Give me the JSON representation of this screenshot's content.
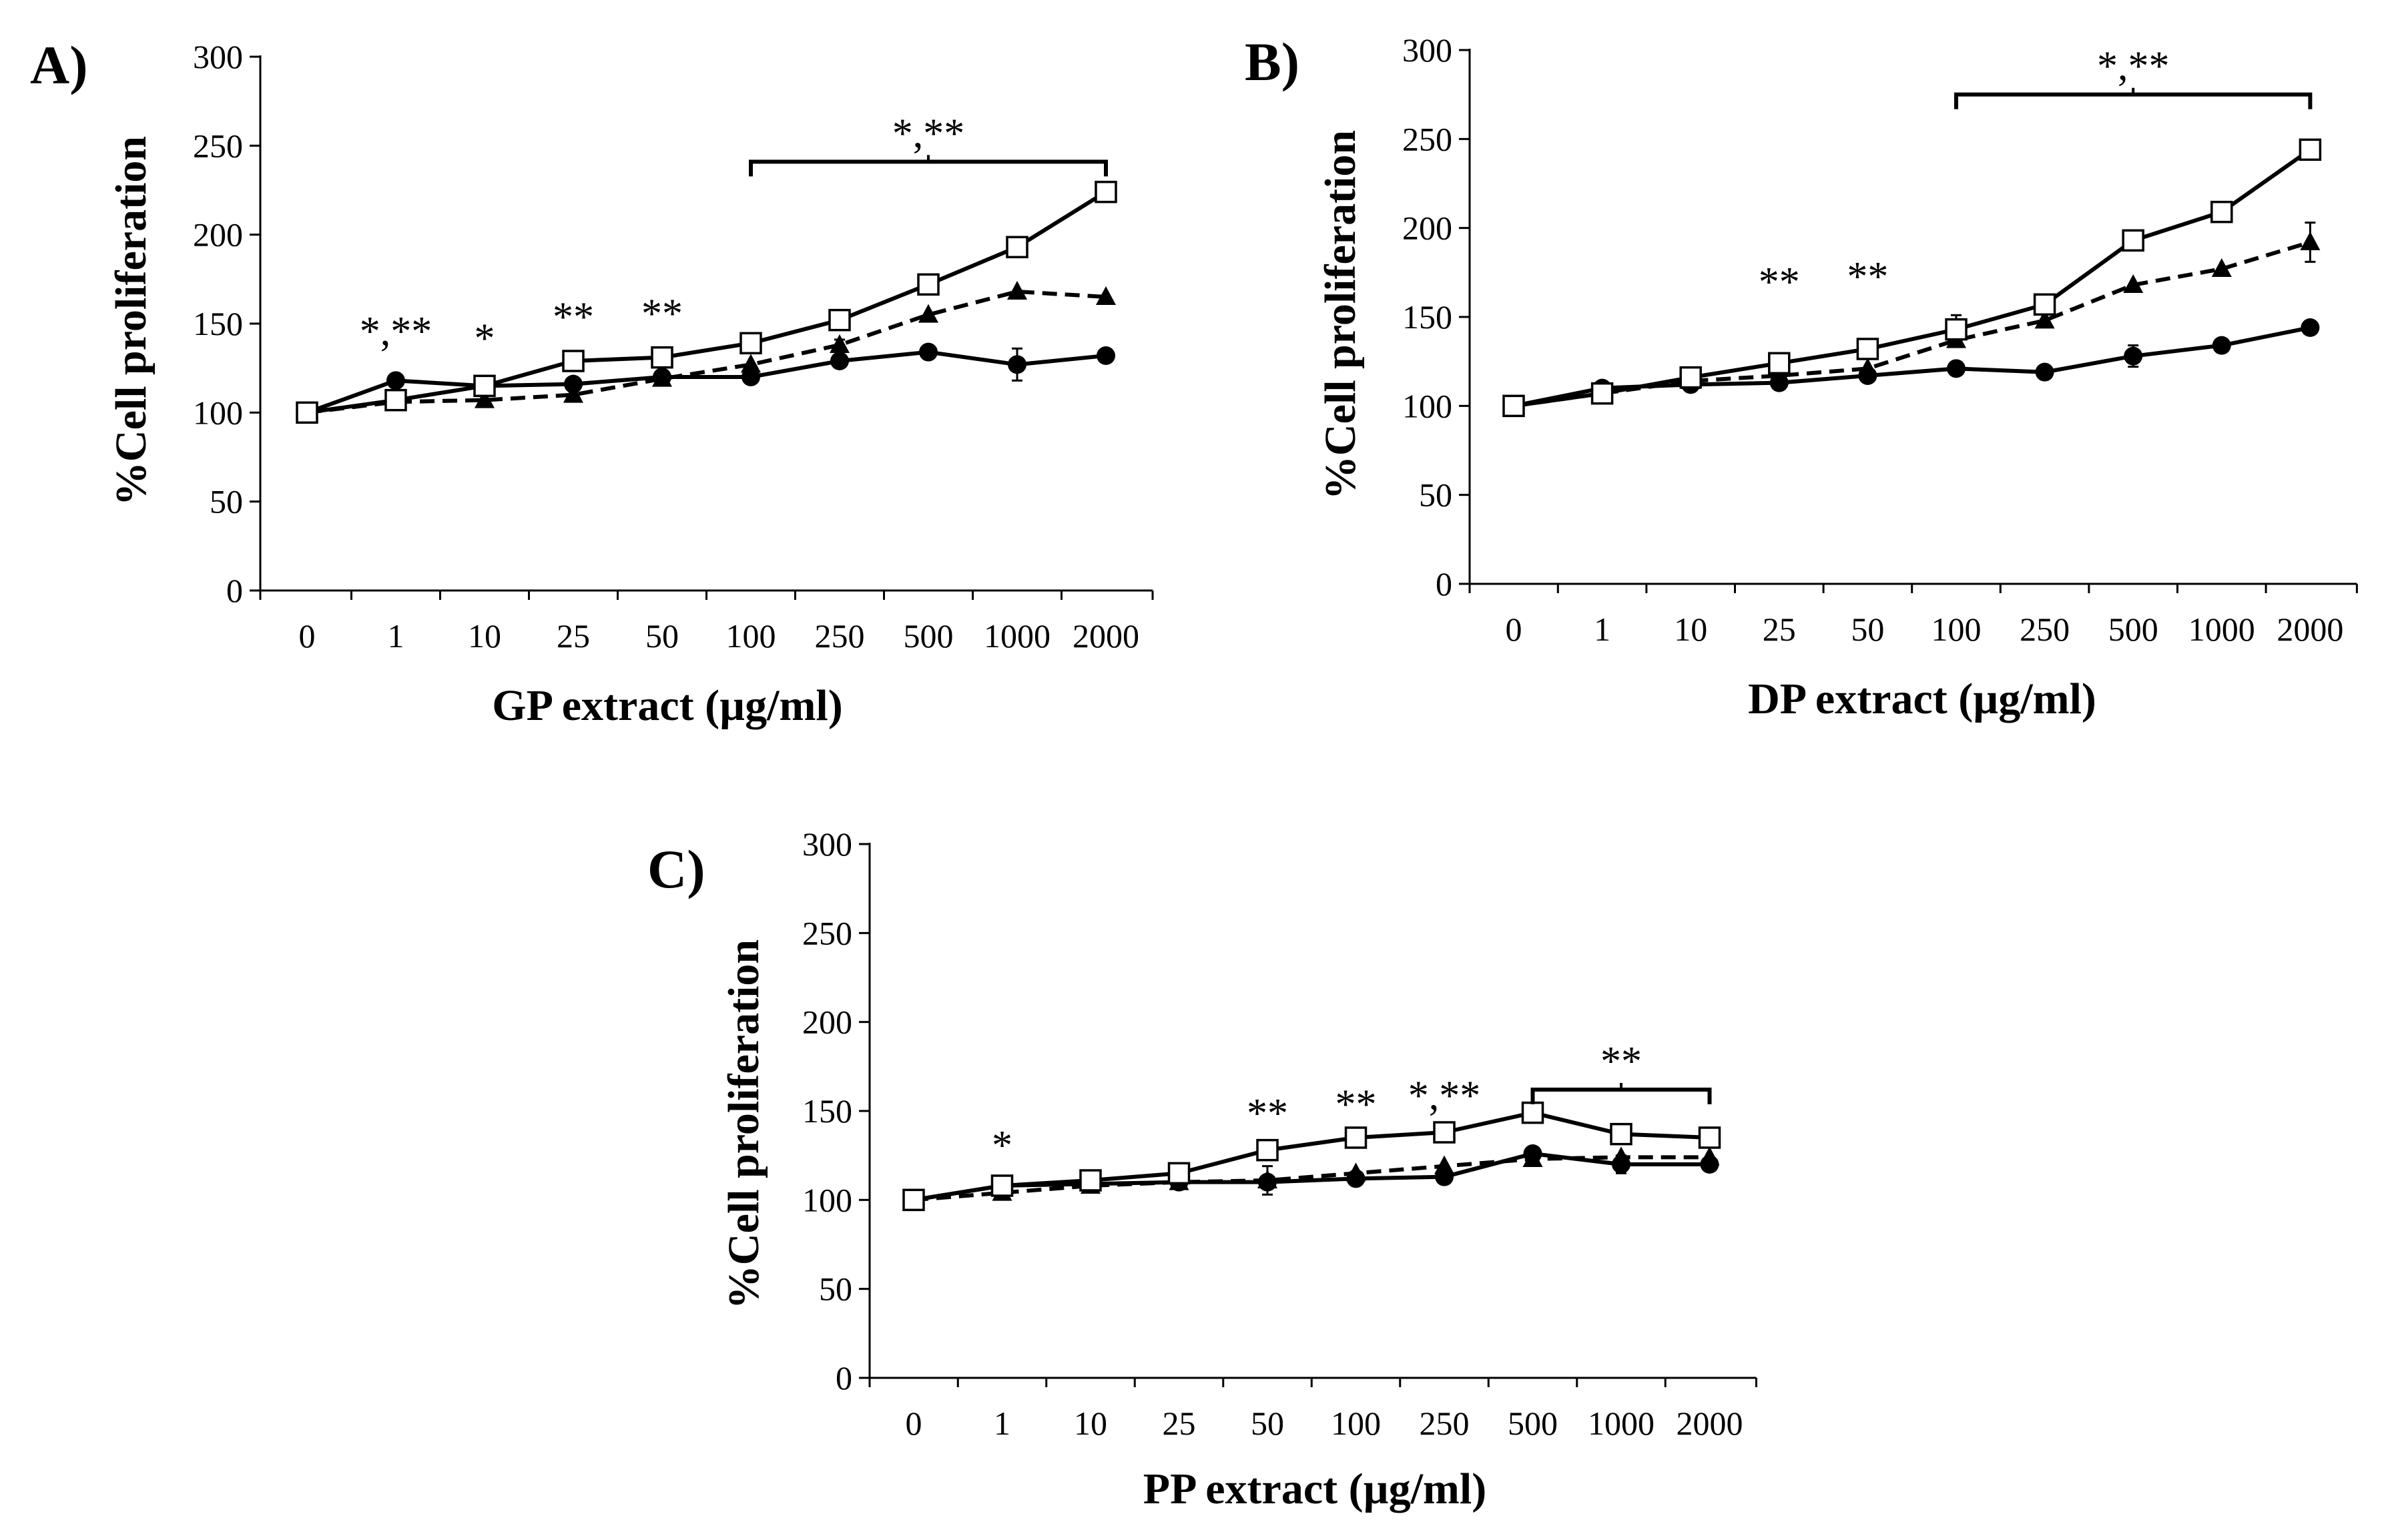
{
  "colors": {
    "ink": "#000000",
    "background": "#ffffff"
  },
  "markers": {
    "open_square": "square-open",
    "filled_triangle": "triangle-filled",
    "filled_circle": "circle-filled"
  },
  "chart_data": [
    {
      "panel": "A)",
      "type": "line",
      "xlabel": "GP extract (µg/ml)",
      "ylabel": "%Cell proliferation",
      "categories": [
        "0",
        "1",
        "10",
        "25",
        "50",
        "100",
        "250",
        "500",
        "1000",
        "2000"
      ],
      "yticks": [
        "0",
        "50",
        "100",
        "150",
        "200",
        "250",
        "300"
      ],
      "ylim": [
        0,
        300
      ],
      "series": [
        {
          "name": "open-square-solid",
          "marker": "square-open",
          "line": "solid",
          "values": [
            100,
            107,
            115,
            129,
            131,
            139,
            152,
            172,
            193,
            224
          ]
        },
        {
          "name": "triangle-dashed",
          "marker": "triangle-filled",
          "line": "dashed",
          "values": [
            100,
            106,
            107,
            110,
            119,
            127,
            138,
            155,
            168,
            165
          ],
          "errors": [
            0,
            0,
            0,
            0,
            0,
            0,
            3,
            0,
            0,
            0
          ]
        },
        {
          "name": "circle-solid",
          "marker": "circle-filled",
          "line": "solid",
          "values": [
            100,
            118,
            115,
            116,
            120,
            120,
            129,
            134,
            127,
            132
          ],
          "errors": [
            0,
            0,
            0,
            0,
            0,
            0,
            0,
            0,
            9,
            0
          ]
        }
      ],
      "annotations": [
        {
          "text": "*,**",
          "at_category": "1",
          "y": 138
        },
        {
          "text": "*",
          "at_category": "10",
          "y": 134
        },
        {
          "text": "**",
          "at_category": "25",
          "y": 146
        },
        {
          "text": "**",
          "at_category": "50",
          "y": 148
        },
        {
          "text": "*,**",
          "bracket": [
            "100",
            "2000"
          ],
          "bracket_y": 241
        }
      ]
    },
    {
      "panel": "B)",
      "type": "line",
      "xlabel": "DP extract (µg/ml)",
      "ylabel": "%Cell proliferation",
      "categories": [
        "0",
        "1",
        "10",
        "25",
        "50",
        "100",
        "250",
        "500",
        "1000",
        "2000"
      ],
      "yticks": [
        "0",
        "50",
        "100",
        "150",
        "200",
        "250",
        "300"
      ],
      "ylim": [
        0,
        300
      ],
      "series": [
        {
          "name": "open-square-solid",
          "marker": "square-open",
          "line": "solid",
          "values": [
            100,
            107,
            116,
            124,
            132,
            143,
            157,
            193,
            209,
            244
          ],
          "errors": [
            0,
            0,
            0,
            0,
            0,
            8,
            0,
            0,
            0,
            0
          ]
        },
        {
          "name": "triangle-dashed",
          "marker": "triangle-filled",
          "line": "dashed",
          "values": [
            100,
            107,
            114,
            117,
            121,
            137,
            148,
            168,
            177,
            192
          ],
          "errors": [
            0,
            0,
            0,
            0,
            0,
            0,
            0,
            0,
            0,
            11
          ]
        },
        {
          "name": "circle-solid",
          "marker": "circle-filled",
          "line": "solid",
          "values": [
            100,
            110,
            112,
            113,
            117,
            121,
            119,
            128,
            134,
            144
          ],
          "errors": [
            0,
            0,
            0,
            0,
            0,
            0,
            0,
            6,
            0,
            0
          ]
        }
      ],
      "annotations": [
        {
          "text": "**",
          "at_category": "25",
          "y": 162
        },
        {
          "text": "**",
          "at_category": "50",
          "y": 165
        },
        {
          "text": "*,**",
          "bracket": [
            "100",
            "2000"
          ],
          "bracket_y": 275
        }
      ]
    },
    {
      "panel": "C)",
      "type": "line",
      "xlabel": "PP extract (µg/ml)",
      "ylabel": "%Cell proliferation",
      "categories": [
        "0",
        "1",
        "10",
        "25",
        "50",
        "100",
        "250",
        "500",
        "1000",
        "2000"
      ],
      "yticks": [
        "0",
        "50",
        "100",
        "150",
        "200",
        "250",
        "300"
      ],
      "ylim": [
        0,
        300
      ],
      "series": [
        {
          "name": "open-square-solid",
          "marker": "square-open",
          "line": "solid",
          "values": [
            100,
            108,
            111,
            115,
            128,
            135,
            138,
            149,
            137,
            135
          ]
        },
        {
          "name": "triangle-dashed",
          "marker": "triangle-filled",
          "line": "dashed",
          "values": [
            100,
            104,
            108,
            110,
            111,
            115,
            119,
            123,
            124,
            124
          ],
          "errors": [
            0,
            0,
            0,
            0,
            8,
            0,
            0,
            0,
            0,
            0
          ]
        },
        {
          "name": "circle-solid",
          "marker": "circle-filled",
          "line": "solid",
          "values": [
            100,
            108,
            109,
            110,
            110,
            112,
            113,
            126,
            120,
            120
          ],
          "errors": [
            0,
            0,
            0,
            0,
            0,
            0,
            0,
            0,
            5,
            0
          ]
        }
      ],
      "annotations": [
        {
          "text": "*",
          "at_category": "1",
          "y": 123
        },
        {
          "text": "**",
          "at_category": "50",
          "y": 141
        },
        {
          "text": "**",
          "at_category": "100",
          "y": 146
        },
        {
          "text": "*,**",
          "at_category": "250",
          "y": 151
        },
        {
          "text": "**",
          "bracket": [
            "500",
            "2000"
          ],
          "bracket_y": 162
        }
      ]
    }
  ]
}
